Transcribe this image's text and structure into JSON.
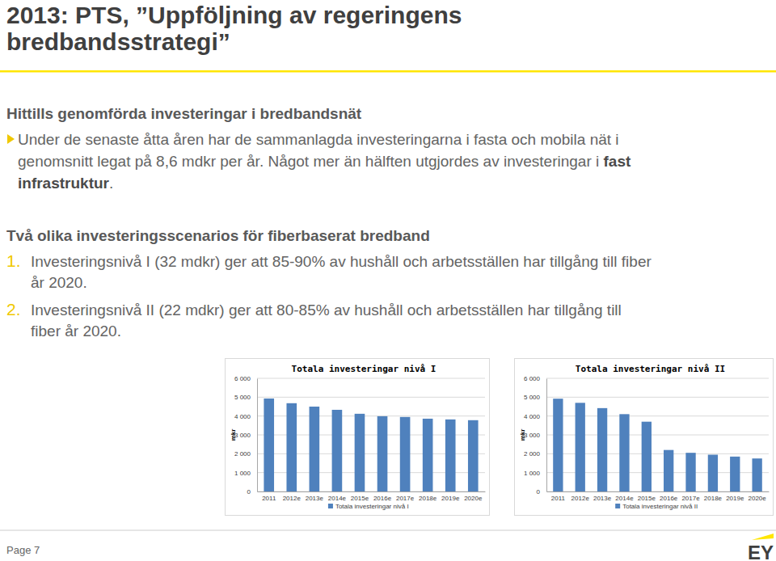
{
  "slide": {
    "title": [
      "2013: PTS, ”Uppföljning av regeringens",
      "bredbandsstrategi”"
    ],
    "heading1": "Hittills genomförda investeringar i bredbandsnät",
    "bullet": [
      [
        {
          "text": "Under de senaste åtta åren har de sammanlagda investeringarna i fasta och mobila nät i",
          "bold": false
        }
      ],
      [
        {
          "text": "genomsnitt legat på 8,6 mdkr per år. Något mer än hälften utgjordes av investeringar i ",
          "bold": false
        },
        {
          "text": "fast",
          "bold": true
        }
      ],
      [
        {
          "text": "infrastruktur",
          "bold": true
        },
        {
          "text": ".",
          "bold": false
        }
      ]
    ],
    "heading2": "Två olika investeringsscenarios för fiberbaserat bredband",
    "items": [
      {
        "number": "1.",
        "lines": [
          "Investeringsnivå I (32 mdkr) ger att 85-90% av hushåll och arbetsställen har tillgång till fiber",
          "år 2020."
        ]
      },
      {
        "number": "2.",
        "lines": [
          "Investeringsnivå II (22 mdkr) ger att 80-85% av hushåll och arbetsställen har tillgång till",
          "fiber år 2020."
        ]
      }
    ],
    "footer": {
      "page": "Page 7",
      "logo": "EY"
    }
  },
  "chart_data": [
    {
      "type": "bar",
      "title": "Totala investeringar nivå I",
      "ylabel": "mkr",
      "categories": [
        "2011",
        "2012e",
        "2013e",
        "2014e",
        "2015e",
        "2016e",
        "2017e",
        "2018e",
        "2019e",
        "2020e"
      ],
      "series": [
        {
          "name": "Totala investeringar nivå I",
          "color": "#4f81bd",
          "values": [
            4930,
            4680,
            4500,
            4330,
            4120,
            3990,
            3950,
            3860,
            3820,
            3780
          ]
        }
      ],
      "ylim": [
        0,
        6000
      ],
      "yticks": [
        0,
        {
          "value": 1000,
          "label": "1 000"
        },
        {
          "value": 2000,
          "label": "2 000"
        },
        {
          "value": 3000,
          "label": "3 000"
        },
        {
          "value": 4000,
          "label": "4 000"
        },
        {
          "value": 5000,
          "label": "5 000"
        },
        {
          "value": 6000,
          "label": "6 000"
        }
      ],
      "grid": true,
      "legend": "bottom"
    },
    {
      "type": "bar",
      "title": "Totala investeringar nivå II",
      "ylabel": "mkr",
      "categories": [
        "2011",
        "2012e",
        "2013e",
        "2014e",
        "2015e",
        "2016e",
        "2017e",
        "2018e",
        "2019e",
        "2020e"
      ],
      "series": [
        {
          "name": "Totala investeringar nivå II",
          "color": "#4f81bd",
          "values": [
            4920,
            4700,
            4420,
            4100,
            3700,
            2200,
            2050,
            1950,
            1850,
            1750
          ]
        }
      ],
      "ylim": [
        0,
        6000
      ],
      "yticks": [
        0,
        {
          "value": 1000,
          "label": "1 000"
        },
        {
          "value": 2000,
          "label": "2 000"
        },
        {
          "value": 3000,
          "label": "3 000"
        },
        {
          "value": 4000,
          "label": "4 000"
        },
        {
          "value": 5000,
          "label": "5 000"
        },
        {
          "value": 6000,
          "label": "6 000"
        }
      ],
      "grid": true,
      "legend": "bottom"
    }
  ]
}
